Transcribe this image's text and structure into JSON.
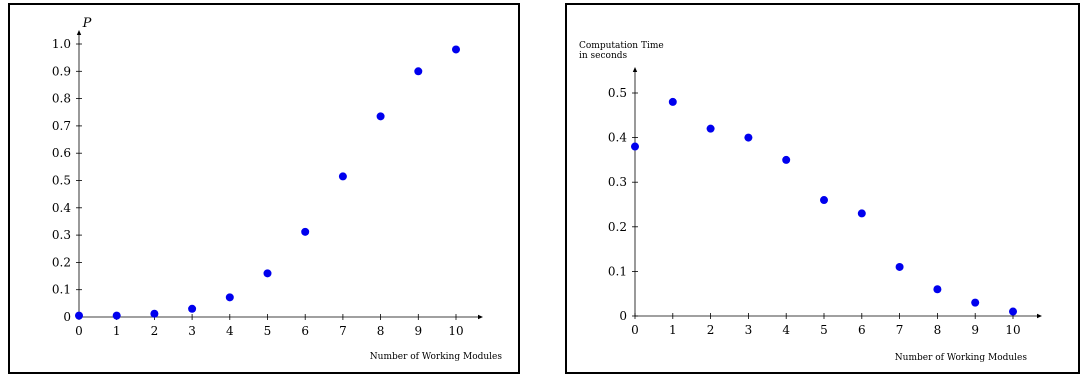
{
  "chart_data": [
    {
      "type": "scatter",
      "title": "",
      "xlabel": "Number of Working Modules",
      "ylabel": "P",
      "xlim": [
        0,
        10
      ],
      "ylim": [
        0,
        1.0
      ],
      "x_ticks": [
        "0",
        "1",
        "2",
        "3",
        "4",
        "5",
        "6",
        "7",
        "8",
        "9",
        "10"
      ],
      "y_ticks": [
        "0",
        "0.1",
        "0.2",
        "0.3",
        "0.4",
        "0.5",
        "0.6",
        "0.7",
        "0.8",
        "0.9",
        "1.0"
      ],
      "grid": false,
      "point_color": "#0000ee",
      "series": [
        {
          "x": [
            0,
            1,
            2,
            3,
            4,
            5,
            6,
            7,
            8,
            9,
            10
          ],
          "y": [
            0.005,
            0.005,
            0.012,
            0.03,
            0.072,
            0.16,
            0.312,
            0.515,
            0.735,
            0.9,
            0.98
          ]
        }
      ]
    },
    {
      "type": "scatter",
      "title": "",
      "xlabel": "Number of Working Modules",
      "ylabel": "Computation Time",
      "ylabel_line2": "in seconds",
      "xlim": [
        0,
        10
      ],
      "ylim": [
        0,
        0.5
      ],
      "x_ticks": [
        "0",
        "1",
        "2",
        "3",
        "4",
        "5",
        "6",
        "7",
        "8",
        "9",
        "10"
      ],
      "y_ticks": [
        "0",
        "0.1",
        "0.2",
        "0.3",
        "0.4",
        "0.5"
      ],
      "grid": false,
      "point_color": "#0000ee",
      "series": [
        {
          "x": [
            0,
            1,
            2,
            3,
            4,
            5,
            6,
            7,
            8,
            9,
            10
          ],
          "y": [
            0.38,
            0.48,
            0.42,
            0.4,
            0.35,
            0.26,
            0.23,
            0.11,
            0.06,
            0.03,
            0.01
          ]
        }
      ]
    }
  ]
}
